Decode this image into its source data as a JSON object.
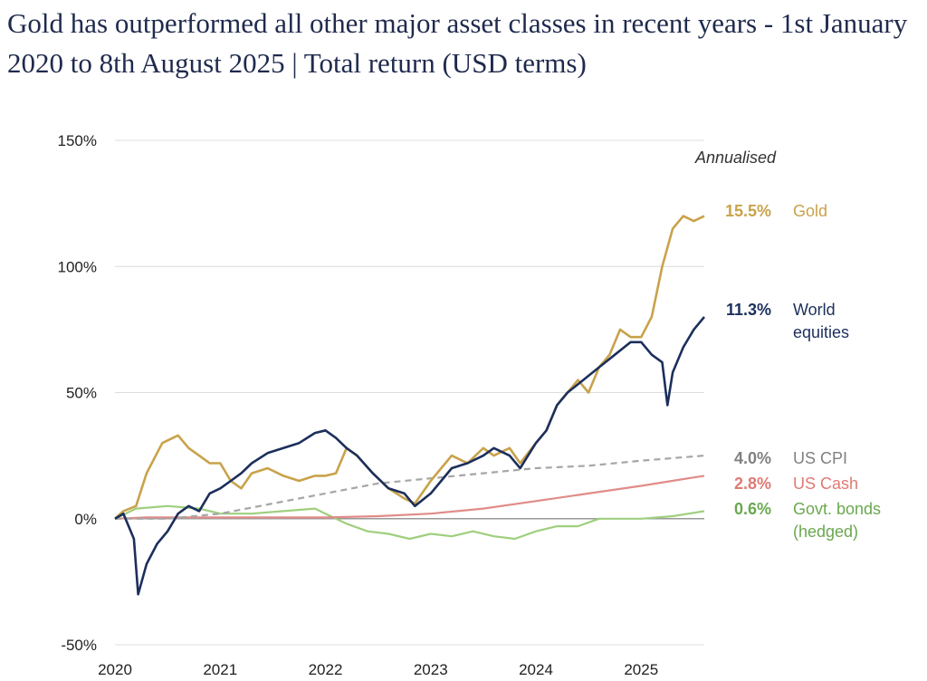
{
  "title": "Gold has outperformed all other major asset classes in recent years - 1st January 2020 to 8th August 2025 | Total return (USD terms)",
  "colors": {
    "gold": "#c9a24a",
    "world_equities": "#1c2f5c",
    "us_cpi": "#a6a6a6",
    "us_cash": "#e08c88",
    "govt_bonds": "#9fcf7e",
    "gold_label": "#c9a24a",
    "equities_label": "#1c2f5c",
    "cpi_label": "#808080",
    "cash_label": "#e07a74",
    "bonds_label": "#6aa84f"
  },
  "chart_data": {
    "type": "line",
    "title": "Gold has outperformed all other major asset classes in recent years - 1st January 2020 to 8th August 2025 | Total return (USD terms)",
    "xlabel": "",
    "ylabel": "",
    "x_ticks": [
      "2020",
      "2021",
      "2022",
      "2023",
      "2024",
      "2025"
    ],
    "y_ticks": [
      "150%",
      "100%",
      "50%",
      "0%",
      "-50%"
    ],
    "y_tick_values": [
      150,
      100,
      50,
      0,
      -50
    ],
    "xlim": [
      2020.0,
      2025.6
    ],
    "ylim": [
      -50,
      150
    ],
    "grid": "horizontal",
    "annotation_header": "Annualised",
    "series": [
      {
        "name": "Gold",
        "annualised": "15.5%",
        "label_lines": [
          "Gold"
        ],
        "style": "solid",
        "x": [
          2020.0,
          2020.08,
          2020.2,
          2020.3,
          2020.45,
          2020.6,
          2020.7,
          2020.8,
          2020.9,
          2021.0,
          2021.1,
          2021.2,
          2021.3,
          2021.45,
          2021.6,
          2021.75,
          2021.9,
          2022.0,
          2022.1,
          2022.2,
          2022.3,
          2022.45,
          2022.6,
          2022.75,
          2022.85,
          2023.0,
          2023.1,
          2023.2,
          2023.35,
          2023.5,
          2023.6,
          2023.75,
          2023.85,
          2024.0,
          2024.1,
          2024.2,
          2024.3,
          2024.4,
          2024.5,
          2024.6,
          2024.7,
          2024.8,
          2024.9,
          2025.0,
          2025.1,
          2025.2,
          2025.3,
          2025.4,
          2025.5,
          2025.6
        ],
        "values": [
          0,
          3,
          5,
          18,
          30,
          33,
          28,
          25,
          22,
          22,
          15,
          12,
          18,
          20,
          17,
          15,
          17,
          17,
          18,
          28,
          25,
          18,
          12,
          8,
          6,
          15,
          20,
          25,
          22,
          28,
          25,
          28,
          22,
          30,
          35,
          45,
          50,
          55,
          50,
          60,
          65,
          75,
          72,
          72,
          80,
          100,
          115,
          120,
          118,
          120
        ]
      },
      {
        "name": "World equities",
        "annualised": "11.3%",
        "label_lines": [
          "World",
          "equities"
        ],
        "style": "solid",
        "x": [
          2020.0,
          2020.08,
          2020.18,
          2020.22,
          2020.3,
          2020.4,
          2020.5,
          2020.6,
          2020.7,
          2020.8,
          2020.9,
          2021.0,
          2021.1,
          2021.2,
          2021.3,
          2021.45,
          2021.6,
          2021.75,
          2021.9,
          2022.0,
          2022.1,
          2022.2,
          2022.3,
          2022.45,
          2022.6,
          2022.75,
          2022.85,
          2023.0,
          2023.1,
          2023.2,
          2023.35,
          2023.5,
          2023.6,
          2023.75,
          2023.85,
          2024.0,
          2024.1,
          2024.2,
          2024.3,
          2024.45,
          2024.6,
          2024.75,
          2024.9,
          2025.0,
          2025.1,
          2025.2,
          2025.25,
          2025.3,
          2025.4,
          2025.5,
          2025.6
        ],
        "values": [
          0,
          2,
          -8,
          -30,
          -18,
          -10,
          -5,
          2,
          5,
          3,
          10,
          12,
          15,
          18,
          22,
          26,
          28,
          30,
          34,
          35,
          32,
          28,
          25,
          18,
          12,
          10,
          5,
          10,
          15,
          20,
          22,
          25,
          28,
          25,
          20,
          30,
          35,
          45,
          50,
          55,
          60,
          65,
          70,
          70,
          65,
          62,
          45,
          58,
          68,
          75,
          80
        ]
      },
      {
        "name": "US CPI",
        "annualised": "4.0%",
        "label_lines": [
          "US CPI"
        ],
        "style": "dashed",
        "x": [
          2020.0,
          2020.5,
          2021.0,
          2021.5,
          2022.0,
          2022.5,
          2023.0,
          2023.5,
          2024.0,
          2024.5,
          2025.0,
          2025.6
        ],
        "values": [
          0,
          0,
          2,
          6,
          10,
          14,
          16,
          18,
          20,
          21,
          23,
          25
        ]
      },
      {
        "name": "US Cash",
        "annualised": "2.8%",
        "label_lines": [
          "US Cash"
        ],
        "style": "solid",
        "x": [
          2020.0,
          2020.3,
          2021.0,
          2022.0,
          2022.5,
          2023.0,
          2023.5,
          2024.0,
          2024.5,
          2025.0,
          2025.6
        ],
        "values": [
          0,
          0.5,
          0.5,
          0.5,
          1,
          2,
          4,
          7,
          10,
          13,
          17
        ]
      },
      {
        "name": "Govt. bonds (hedged)",
        "annualised": "0.6%",
        "label_lines": [
          "Govt. bonds",
          "(hedged)"
        ],
        "style": "solid",
        "x": [
          2020.0,
          2020.2,
          2020.5,
          2020.8,
          2021.0,
          2021.3,
          2021.6,
          2021.9,
          2022.0,
          2022.2,
          2022.4,
          2022.6,
          2022.8,
          2023.0,
          2023.2,
          2023.4,
          2023.6,
          2023.8,
          2024.0,
          2024.2,
          2024.4,
          2024.6,
          2024.8,
          2025.0,
          2025.3,
          2025.6
        ],
        "values": [
          0,
          4,
          5,
          4,
          2,
          2,
          3,
          4,
          2,
          -2,
          -5,
          -6,
          -8,
          -6,
          -7,
          -5,
          -7,
          -8,
          -5,
          -3,
          -3,
          0,
          0,
          0,
          1,
          3
        ]
      }
    ]
  }
}
